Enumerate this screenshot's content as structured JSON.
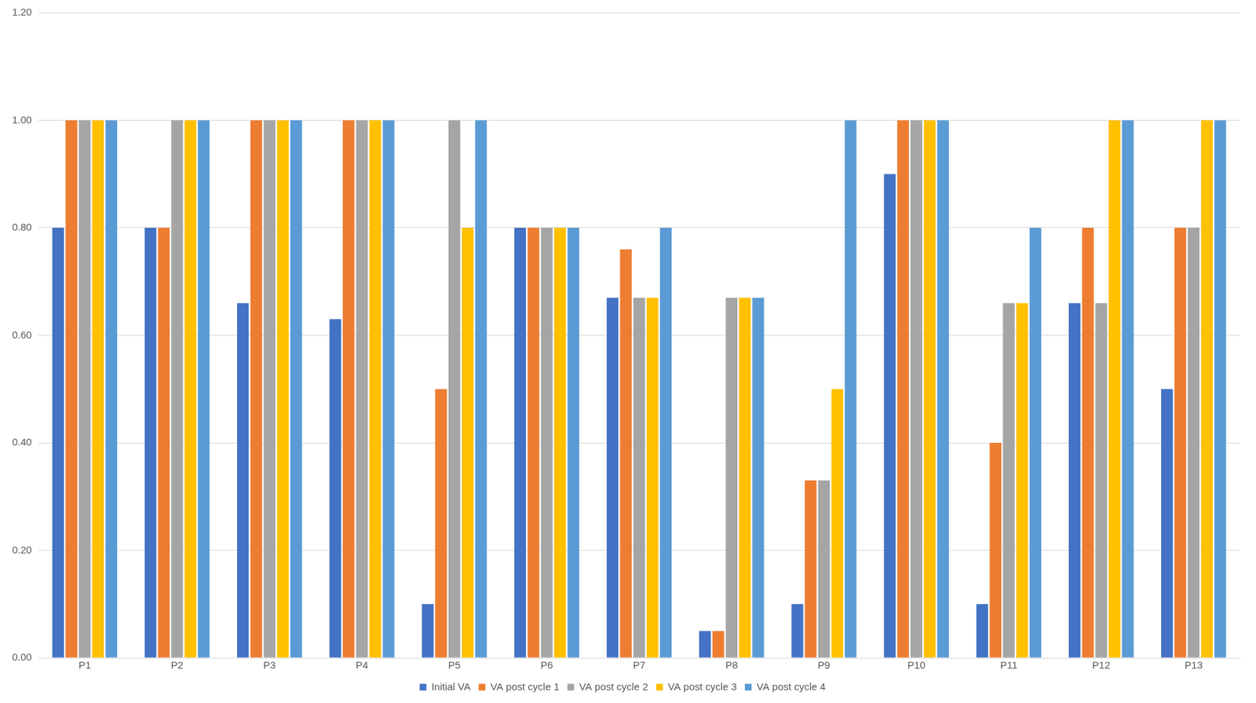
{
  "chart_data": {
    "type": "bar",
    "categories": [
      "P1",
      "P2",
      "P3",
      "P4",
      "P5",
      "P6",
      "P7",
      "P8",
      "P9",
      "P10",
      "P11",
      "P12",
      "P13"
    ],
    "series": [
      {
        "name": "Initial VA",
        "color": "#4472c4",
        "values": [
          0.8,
          0.8,
          0.66,
          0.63,
          0.1,
          0.8,
          0.67,
          0.05,
          0.1,
          0.9,
          0.1,
          0.66,
          0.5
        ]
      },
      {
        "name": "VA post cycle 1",
        "color": "#ed7d31",
        "values": [
          1,
          0.8,
          1,
          1,
          0.5,
          0.8,
          0.76,
          0.05,
          0.33,
          1,
          0.4,
          0.8,
          0.8
        ]
      },
      {
        "name": "VA post cycle 2",
        "color": "#a5a5a5",
        "values": [
          1,
          1,
          1,
          1,
          1,
          0.8,
          0.67,
          0.67,
          0.33,
          1,
          0.66,
          0.66,
          0.8
        ]
      },
      {
        "name": "VA post cycle 3",
        "color": "#ffc000",
        "values": [
          1,
          1,
          1,
          1,
          0.8,
          0.8,
          0.67,
          0.67,
          0.5,
          1,
          0.66,
          1,
          1
        ]
      },
      {
        "name": "VA post cycle 4",
        "color": "#5b9bd5",
        "values": [
          1,
          1,
          1,
          1,
          1,
          0.8,
          0.8,
          0.67,
          1,
          1,
          0.8,
          1,
          1
        ]
      }
    ],
    "ylim": [
      0,
      1.2
    ],
    "yticks": [
      {
        "value": 0,
        "label": "0.00"
      },
      {
        "value": 0.2,
        "label": "0.20"
      },
      {
        "value": 0.4,
        "label": "0.40"
      },
      {
        "value": 0.6,
        "label": "0.60"
      },
      {
        "value": 0.8,
        "label": "0.80"
      },
      {
        "value": 1,
        "label": "1.00"
      },
      {
        "value": 1.2,
        "label": "1.20"
      }
    ],
    "grid": true,
    "legend": "bottom"
  }
}
